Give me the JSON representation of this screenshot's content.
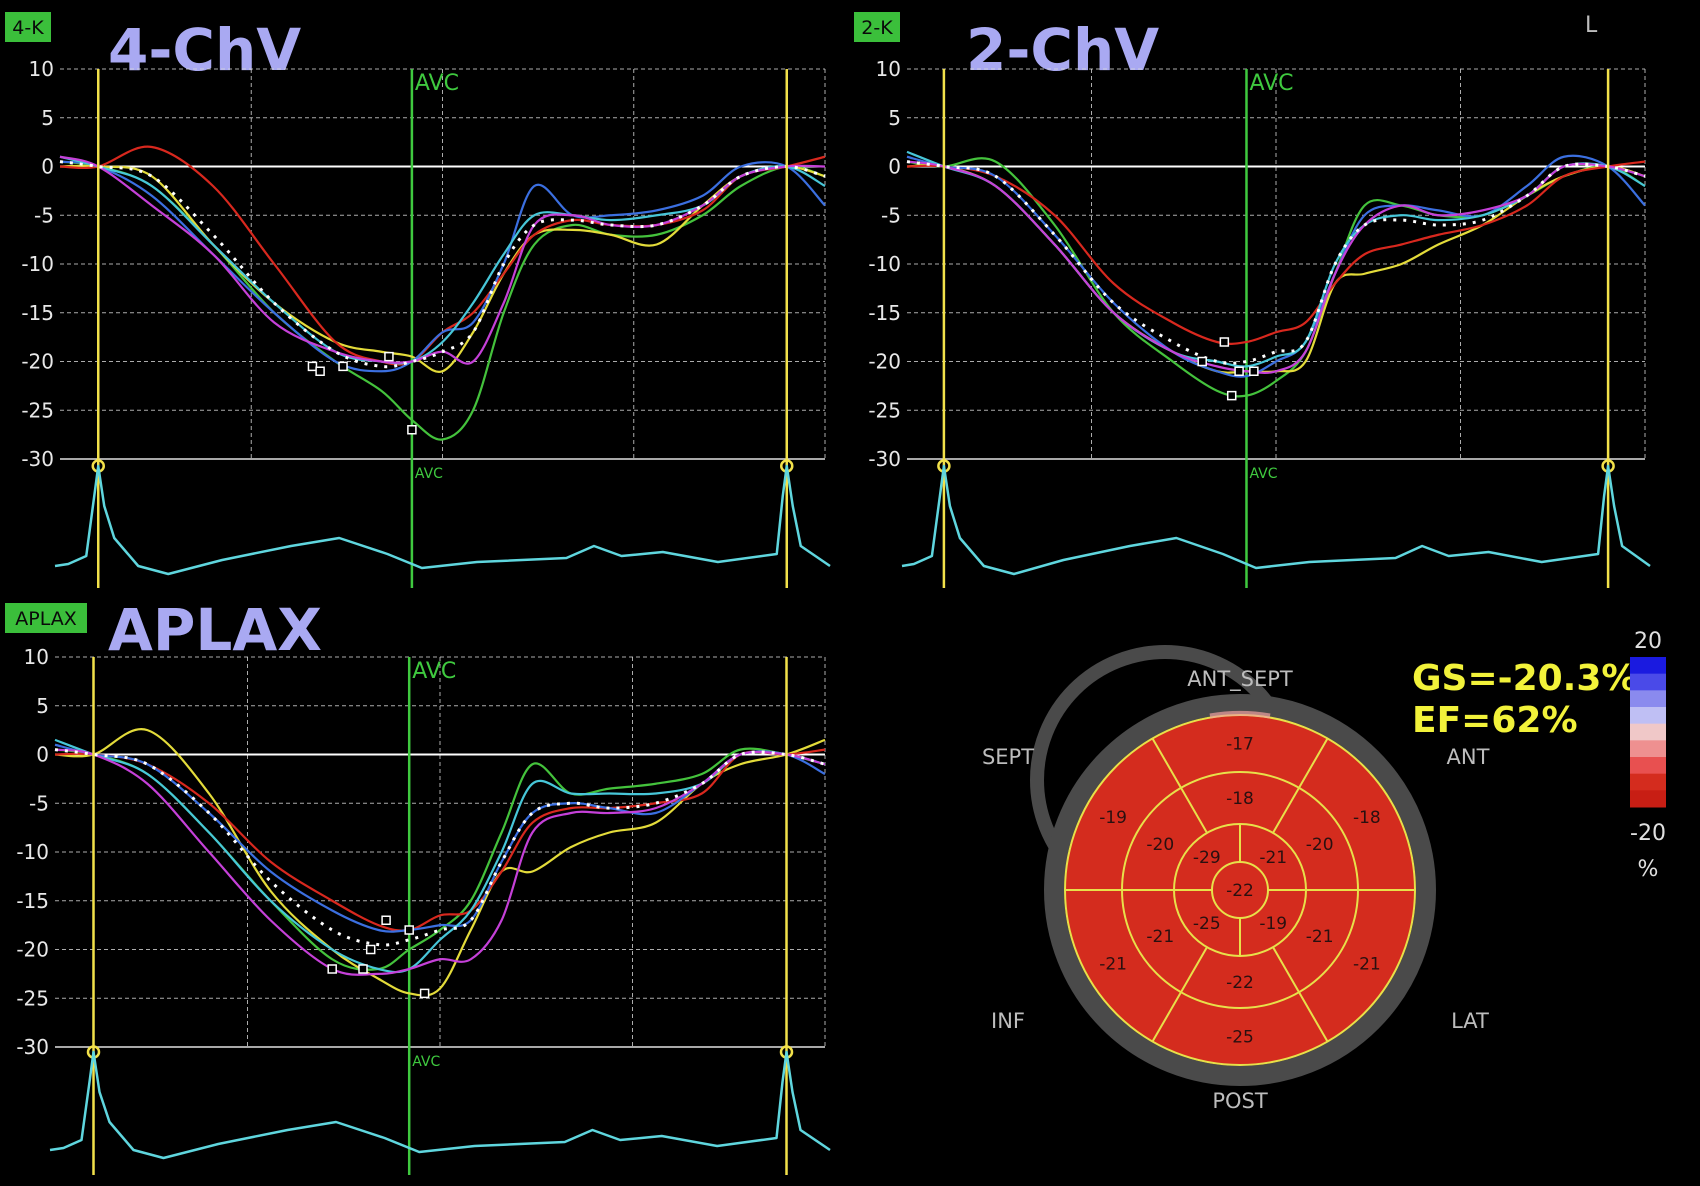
{
  "colors": {
    "background": "#000000",
    "grid": "#d8d8d8",
    "zero_line": "#ffffff",
    "avc_line": "#3fc93f",
    "ecg_marker": "#f2e14a",
    "ecg_trace": "#5fd6de",
    "view_title": "#a9a9f2",
    "view_tag_bg": "#3bbf3b",
    "gs_text": "#f2f23a",
    "bullseye_fill": "#d42c1e",
    "bullseye_lines": "#e8e04a",
    "bullseye_ring": "#4a4a4a",
    "series": {
      "green": "#44c23c",
      "yellow": "#e3db3a",
      "red": "#d8281e",
      "blue": "#3b6fe0",
      "cyan": "#47c6d8",
      "magenta": "#c540d8",
      "white_dotted": "#ffffff"
    }
  },
  "corner_label": "L",
  "chart_data": [
    {
      "type": "line",
      "view_tag": "4-K",
      "title": "4-ChV",
      "marker_label": "AVC",
      "x_domain": [
        0,
        100
      ],
      "ylim": [
        -30,
        10
      ],
      "yticks": [
        10,
        5,
        0,
        -5,
        -10,
        -15,
        -20,
        -25,
        -30
      ],
      "avc_x": 46,
      "ecg_markers_x": [
        5,
        95
      ],
      "grid": true,
      "x": [
        0,
        5,
        12,
        20,
        28,
        36,
        42,
        46,
        50,
        54,
        58,
        62,
        67,
        72,
        78,
        84,
        89,
        95,
        100
      ],
      "series": [
        {
          "color": "green",
          "values": [
            0.5,
            0,
            -2,
            -8,
            -15,
            -20,
            -23,
            -26,
            -28,
            -25,
            -15,
            -8,
            -6,
            -7,
            -7,
            -5,
            -2,
            0,
            -1
          ]
        },
        {
          "color": "yellow",
          "values": [
            0,
            0,
            -1,
            -8,
            -14,
            -18,
            -19,
            -19.5,
            -21,
            -17,
            -11,
            -7,
            -6.5,
            -7,
            -8,
            -4,
            -1,
            0,
            -1
          ]
        },
        {
          "color": "red",
          "values": [
            0,
            0,
            2,
            -2,
            -10,
            -18,
            -20,
            -20,
            -17,
            -15,
            -11,
            -7,
            -5.5,
            -6,
            -6,
            -4.5,
            -1,
            0,
            1
          ]
        },
        {
          "color": "blue",
          "values": [
            0.5,
            0,
            -3,
            -9,
            -15,
            -20,
            -21,
            -20,
            -17,
            -16,
            -10,
            -2,
            -5,
            -5,
            -4.5,
            -3,
            0,
            0,
            -4
          ]
        },
        {
          "color": "cyan",
          "values": [
            1,
            0,
            -2,
            -8,
            -14,
            -19,
            -20,
            -20,
            -18,
            -14,
            -9,
            -5,
            -5,
            -5.5,
            -5,
            -4,
            -1,
            0,
            -2
          ]
        },
        {
          "color": "magenta",
          "values": [
            1,
            0,
            -4,
            -9,
            -16,
            -19,
            -20,
            -20,
            -19,
            -20,
            -14,
            -6,
            -5,
            -6,
            -6,
            -4,
            -1,
            0,
            0
          ]
        },
        {
          "color": "white_dotted",
          "values": [
            0.5,
            0,
            -1,
            -7,
            -14,
            -19,
            -20.5,
            -20,
            -19,
            -17,
            -10,
            -6,
            -5.5,
            -6,
            -6,
            -4,
            -1,
            0,
            -1
          ]
        }
      ],
      "peak_markers": [
        [
          33,
          -20.5
        ],
        [
          34,
          -21
        ],
        [
          37,
          -20.5
        ],
        [
          43,
          -19.5
        ],
        [
          46,
          -27
        ]
      ]
    },
    {
      "type": "line",
      "view_tag": "2-K",
      "title": "2-ChV",
      "marker_label": "AVC",
      "x_domain": [
        0,
        100
      ],
      "ylim": [
        -30,
        10
      ],
      "yticks": [
        10,
        5,
        0,
        -5,
        -10,
        -15,
        -20,
        -25,
        -30
      ],
      "avc_x": 46,
      "ecg_markers_x": [
        5,
        95
      ],
      "grid": true,
      "x": [
        0,
        5,
        12,
        20,
        28,
        36,
        42,
        46,
        50,
        54,
        58,
        62,
        67,
        72,
        78,
        84,
        89,
        95,
        100
      ],
      "series": [
        {
          "color": "green",
          "values": [
            0.5,
            0,
            0.5,
            -6,
            -15,
            -20,
            -23,
            -23.5,
            -22,
            -19,
            -11,
            -4,
            -4,
            -5,
            -5,
            -3,
            -1,
            0,
            -2
          ]
        },
        {
          "color": "yellow",
          "values": [
            0,
            0,
            -2,
            -8,
            -15,
            -19,
            -21,
            -21,
            -21,
            -20,
            -12,
            -11,
            -10,
            -8,
            -6,
            -3,
            -1,
            0,
            -1
          ]
        },
        {
          "color": "red",
          "values": [
            0,
            0,
            -1,
            -5,
            -12,
            -16,
            -18,
            -18,
            -17,
            -16,
            -12,
            -9,
            -8,
            -7,
            -6,
            -4,
            -1,
            0,
            0.5
          ]
        },
        {
          "color": "blue",
          "values": [
            1,
            0,
            -1,
            -7,
            -14,
            -19,
            -21,
            -21.5,
            -20,
            -18,
            -11,
            -5,
            -4,
            -4.5,
            -5,
            -2,
            1,
            0,
            -4
          ]
        },
        {
          "color": "cyan",
          "values": [
            1.5,
            0,
            -2,
            -8,
            -15,
            -19,
            -20,
            -20.5,
            -19.5,
            -18,
            -10,
            -6,
            -5,
            -5.5,
            -5,
            -3,
            0,
            0,
            -2
          ]
        },
        {
          "color": "magenta",
          "values": [
            0.5,
            0,
            -2,
            -8,
            -15,
            -19,
            -20.5,
            -21,
            -21,
            -19,
            -11,
            -6,
            -4,
            -5,
            -4.5,
            -3,
            0,
            0,
            -1
          ]
        },
        {
          "color": "white_dotted",
          "values": [
            0.5,
            0,
            -1,
            -7,
            -14,
            -18,
            -20,
            -20,
            -19,
            -18,
            -10,
            -6,
            -5.5,
            -6,
            -5.5,
            -3,
            0,
            0,
            -1
          ]
        }
      ],
      "peak_markers": [
        [
          40,
          -20
        ],
        [
          43,
          -18
        ],
        [
          45,
          -21
        ],
        [
          47,
          -21
        ],
        [
          44,
          -23.5
        ]
      ]
    },
    {
      "type": "line",
      "view_tag": "APLAX",
      "title": "APLAX",
      "marker_label": "AVC",
      "x_domain": [
        0,
        100
      ],
      "ylim": [
        -30,
        10
      ],
      "yticks": [
        10,
        5,
        0,
        -5,
        -10,
        -15,
        -20,
        -25,
        -30
      ],
      "avc_x": 46,
      "ecg_markers_x": [
        5,
        95
      ],
      "grid": true,
      "x": [
        0,
        5,
        12,
        20,
        28,
        36,
        42,
        46,
        50,
        54,
        58,
        62,
        67,
        72,
        78,
        84,
        89,
        95,
        100
      ],
      "series": [
        {
          "color": "green",
          "values": [
            0.5,
            0,
            -2,
            -8,
            -15,
            -21,
            -22,
            -20,
            -18,
            -15,
            -8,
            -1,
            -4,
            -3.5,
            -3,
            -2,
            0.5,
            0,
            -1
          ]
        },
        {
          "color": "yellow",
          "values": [
            0,
            0,
            2.5,
            -4,
            -14,
            -20,
            -23,
            -24.5,
            -24,
            -18,
            -12,
            -12,
            -9.5,
            -8,
            -7,
            -3,
            -1,
            0,
            1.5
          ]
        },
        {
          "color": "red",
          "values": [
            0,
            0,
            -1,
            -5,
            -11,
            -15,
            -17.5,
            -18,
            -16.5,
            -16,
            -12,
            -7,
            -5.5,
            -5.5,
            -5,
            -4,
            0,
            0,
            0.5
          ]
        },
        {
          "color": "blue",
          "values": [
            1,
            0,
            -1,
            -6,
            -12,
            -16,
            -18,
            -18,
            -17.5,
            -17,
            -11,
            -6,
            -5,
            -5.5,
            -6,
            -3,
            0,
            0,
            -2
          ]
        },
        {
          "color": "cyan",
          "values": [
            1.5,
            0,
            -2,
            -8,
            -15,
            -20,
            -22,
            -22,
            -19,
            -16,
            -10,
            -3,
            -4,
            -4,
            -4,
            -3,
            0,
            0,
            -1
          ]
        },
        {
          "color": "magenta",
          "values": [
            0.5,
            0,
            -3,
            -10,
            -17,
            -22,
            -22.5,
            -22,
            -21,
            -21,
            -17,
            -8,
            -6,
            -6,
            -5.5,
            -3,
            0,
            0,
            -1
          ]
        },
        {
          "color": "white_dotted",
          "values": [
            0.5,
            0,
            -1,
            -6,
            -13,
            -18,
            -19.5,
            -19,
            -18,
            -17,
            -11,
            -6,
            -5,
            -5.5,
            -5,
            -3,
            0,
            0,
            -1
          ]
        }
      ],
      "peak_markers": [
        [
          36,
          -22
        ],
        [
          40,
          -22
        ],
        [
          41,
          -20
        ],
        [
          43,
          -17
        ],
        [
          46,
          -18
        ],
        [
          48,
          -24.5
        ]
      ]
    }
  ],
  "bullseye": {
    "type": "bullseye",
    "gs_label": "GS=-20.3%",
    "ef_label": "EF=62%",
    "orientation_labels": {
      "ant_sept": "ANT_SEPT",
      "sept": "SEPT",
      "ant": "ANT",
      "inf": "INF",
      "lat": "LAT",
      "post": "POST"
    },
    "outer_segments": [
      -17,
      -18,
      -21,
      -25,
      -21,
      -19
    ],
    "mid_segments": [
      -18,
      -20,
      -21,
      -22,
      -21,
      -20
    ],
    "apical_segments": [
      -21,
      -19,
      -25,
      -29
    ],
    "apex": -22,
    "color_scale": {
      "max_label": "20",
      "min_label": "-20",
      "unit_label": "%",
      "swatches": [
        "#1a1ae0",
        "#4a4ae8",
        "#8a8aee",
        "#bfbff4",
        "#f0c8c8",
        "#ee9090",
        "#e85050",
        "#d42c1e",
        "#c81e14"
      ]
    }
  }
}
